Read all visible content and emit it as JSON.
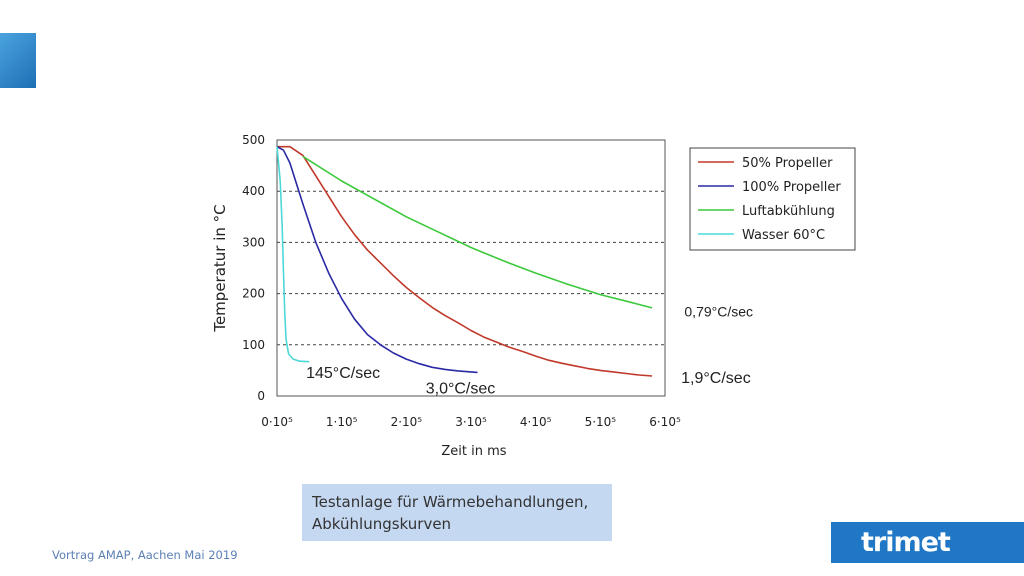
{
  "slide": {
    "caption_lines": [
      "Testanlage für Wärmebehandlungen,",
      "Abkühlungskurven"
    ],
    "footer": "Vortrag AMAP, Aachen Mai 2019",
    "logo_text": "trimet",
    "accent_color": "#1f77c6"
  },
  "chart_data": {
    "type": "line",
    "title": "",
    "xlabel": "Zeit in ms",
    "ylabel": "Temperatur in °C",
    "xlim": [
      0,
      600000
    ],
    "ylim": [
      0,
      500
    ],
    "grid": "horizontal dashed",
    "legend_position": "top-right",
    "x_ticks": [
      {
        "value": 0,
        "label": "0·10⁵"
      },
      {
        "value": 100000,
        "label": "1·10⁵"
      },
      {
        "value": 200000,
        "label": "2·10⁵"
      },
      {
        "value": 300000,
        "label": "3·10⁵"
      },
      {
        "value": 400000,
        "label": "4·10⁵"
      },
      {
        "value": 500000,
        "label": "5·10⁵"
      },
      {
        "value": 600000,
        "label": "6·10⁵"
      }
    ],
    "y_ticks": [
      {
        "value": 0,
        "label": "0"
      },
      {
        "value": 100,
        "label": "100"
      },
      {
        "value": 200,
        "label": "200"
      },
      {
        "value": 300,
        "label": "300"
      },
      {
        "value": 400,
        "label": "400"
      },
      {
        "value": 500,
        "label": "500"
      }
    ],
    "series": [
      {
        "name": "50% Propeller",
        "color": "#c0392b",
        "x": [
          0,
          20000,
          40000,
          60000,
          80000,
          100000,
          120000,
          140000,
          160000,
          180000,
          200000,
          220000,
          240000,
          260000,
          280000,
          300000,
          320000,
          340000,
          360000,
          380000,
          400000,
          420000,
          440000,
          460000,
          480000,
          500000,
          520000,
          540000,
          560000,
          580000
        ],
        "y": [
          487,
          487,
          470,
          430,
          390,
          350,
          315,
          285,
          260,
          235,
          212,
          192,
          173,
          157,
          143,
          128,
          115,
          105,
          95,
          87,
          78,
          70,
          64,
          59,
          54,
          50,
          47,
          44,
          41,
          39
        ]
      },
      {
        "name": "100% Propeller",
        "color": "#2a2aa5",
        "x": [
          0,
          10000,
          20000,
          40000,
          60000,
          80000,
          100000,
          120000,
          140000,
          160000,
          180000,
          200000,
          220000,
          240000,
          260000,
          280000,
          300000,
          310000
        ],
        "y": [
          487,
          480,
          455,
          375,
          300,
          240,
          190,
          150,
          120,
          100,
          84,
          72,
          63,
          56,
          52,
          49,
          47,
          46
        ]
      },
      {
        "name": "Luftabkühlung",
        "color": "#3cc93c",
        "x": [
          40000,
          100000,
          150000,
          200000,
          250000,
          300000,
          350000,
          400000,
          450000,
          500000,
          550000,
          580000
        ],
        "y": [
          468,
          420,
          385,
          350,
          320,
          290,
          264,
          240,
          218,
          198,
          182,
          172
        ]
      },
      {
        "name": "Wasser 60°C",
        "color": "#4dd8d8",
        "x": [
          0,
          5000,
          8000,
          10000,
          12000,
          14000,
          18000,
          25000,
          35000,
          50000
        ],
        "y": [
          487,
          420,
          330,
          240,
          160,
          110,
          82,
          72,
          68,
          67
        ]
      }
    ],
    "annotations": [
      {
        "text": "145°C/sec",
        "x": 45000,
        "y": 35
      },
      {
        "text": "3,0°C/sec",
        "x": 230000,
        "y": 5
      },
      {
        "text": "1,9°C/sec",
        "x": 625000,
        "y": 25
      },
      {
        "text": "0,79°C/sec",
        "x": 630000,
        "y": 155
      }
    ]
  }
}
